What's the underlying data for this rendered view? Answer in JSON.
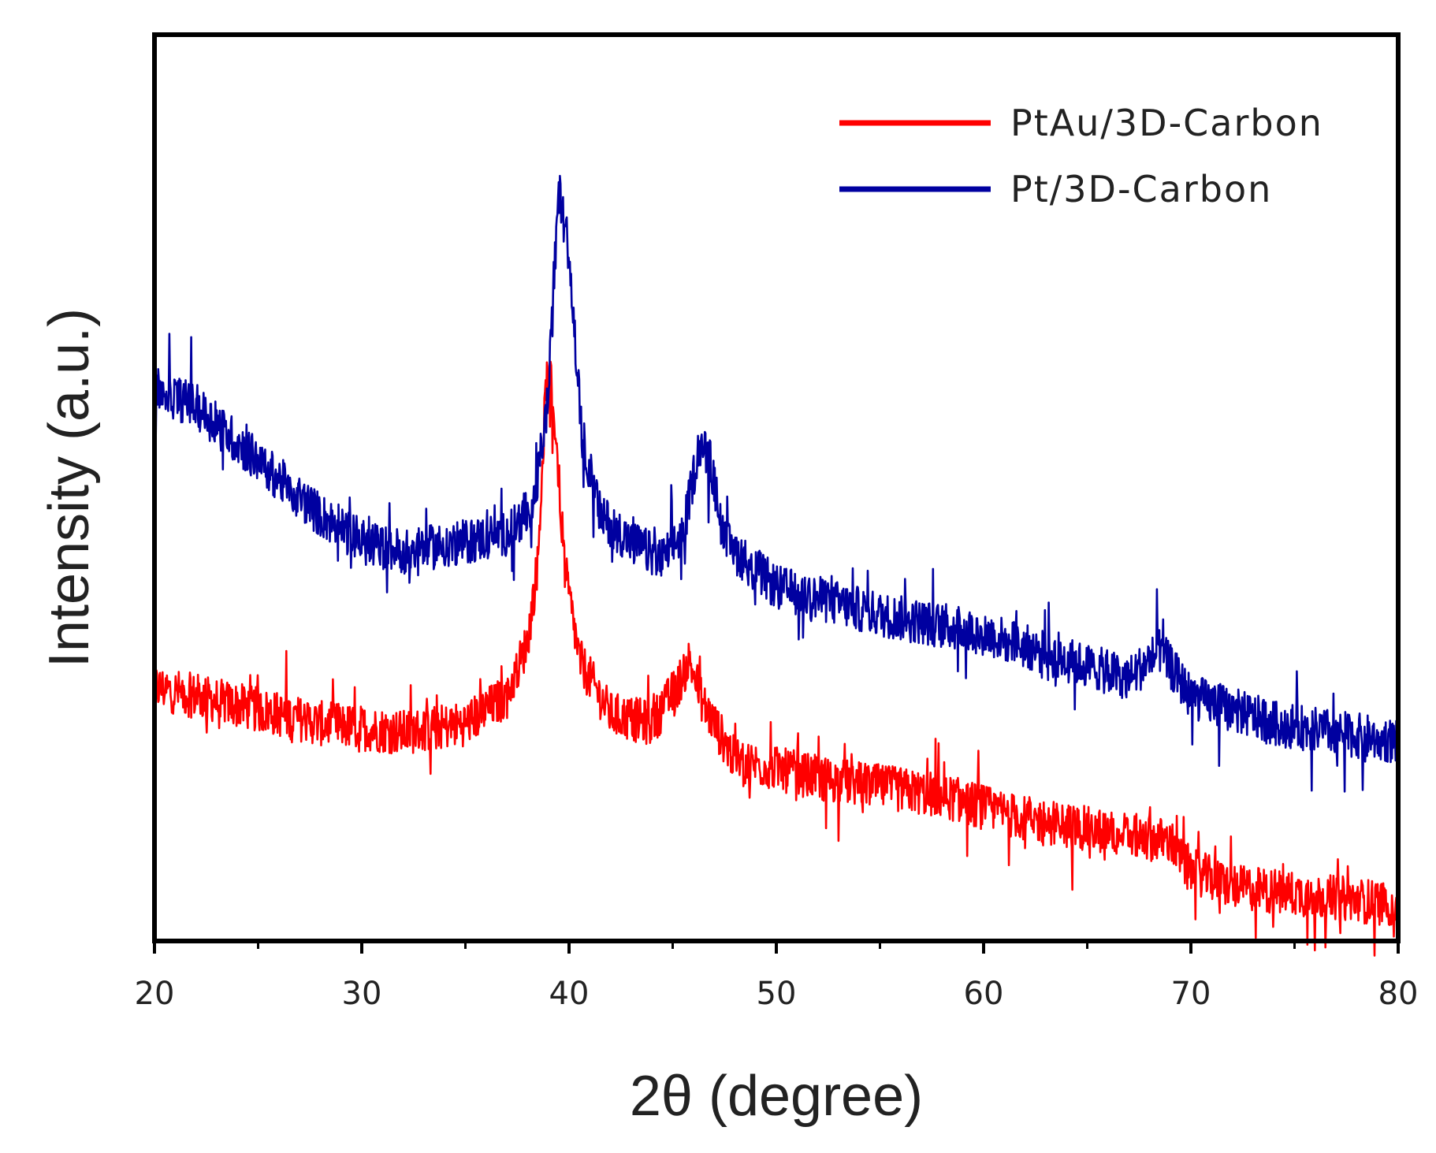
{
  "chart_data": {
    "type": "line",
    "title": "",
    "xlabel": "2θ (degree)",
    "ylabel": "Intensity (a.u.)",
    "xlim": [
      20,
      80
    ],
    "ylim": [
      0,
      100
    ],
    "xticks": [
      20,
      30,
      40,
      50,
      60,
      70,
      80
    ],
    "x_minor_step": 5,
    "y_tick_labels": false,
    "grid": false,
    "legend": "top-right",
    "series": [
      {
        "name": "PtAu/3D-Carbon",
        "color": "#ff0000",
        "noise": 5,
        "points": [
          [
            20,
            28
          ],
          [
            24,
            26
          ],
          [
            28,
            24
          ],
          [
            32,
            23
          ],
          [
            35,
            24
          ],
          [
            37,
            27
          ],
          [
            38,
            33
          ],
          [
            38.5,
            42
          ],
          [
            38.9,
            62
          ],
          [
            39.3,
            58
          ],
          [
            39.8,
            41
          ],
          [
            40.5,
            31
          ],
          [
            42,
            25
          ],
          [
            44,
            24
          ],
          [
            45.2,
            28
          ],
          [
            45.8,
            31
          ],
          [
            46.5,
            26
          ],
          [
            48,
            20
          ],
          [
            52,
            18
          ],
          [
            58,
            16
          ],
          [
            62,
            13.5
          ],
          [
            66,
            12
          ],
          [
            69,
            11
          ],
          [
            69.8,
            8
          ],
          [
            72,
            6
          ],
          [
            76,
            5
          ],
          [
            80,
            4
          ]
        ]
      },
      {
        "name": "Pt/3D-Carbon",
        "color": "#0000a0",
        "noise": 5,
        "points": [
          [
            20,
            61
          ],
          [
            22,
            59
          ],
          [
            24,
            55
          ],
          [
            26,
            51
          ],
          [
            28,
            47
          ],
          [
            30,
            44
          ],
          [
            32,
            43
          ],
          [
            35,
            44
          ],
          [
            37,
            45
          ],
          [
            38.3,
            48
          ],
          [
            39,
            60
          ],
          [
            39.5,
            83
          ],
          [
            40,
            76
          ],
          [
            40.6,
            56
          ],
          [
            41.5,
            47
          ],
          [
            43,
            44
          ],
          [
            44.5,
            42
          ],
          [
            45.5,
            45
          ],
          [
            46.3,
            55
          ],
          [
            46.8,
            53
          ],
          [
            47.5,
            44
          ],
          [
            50,
            39
          ],
          [
            55,
            36
          ],
          [
            60,
            34
          ],
          [
            64,
            31
          ],
          [
            67,
            29
          ],
          [
            68.5,
            32
          ],
          [
            70,
            27
          ],
          [
            74,
            24
          ],
          [
            80,
            22
          ]
        ]
      }
    ]
  }
}
